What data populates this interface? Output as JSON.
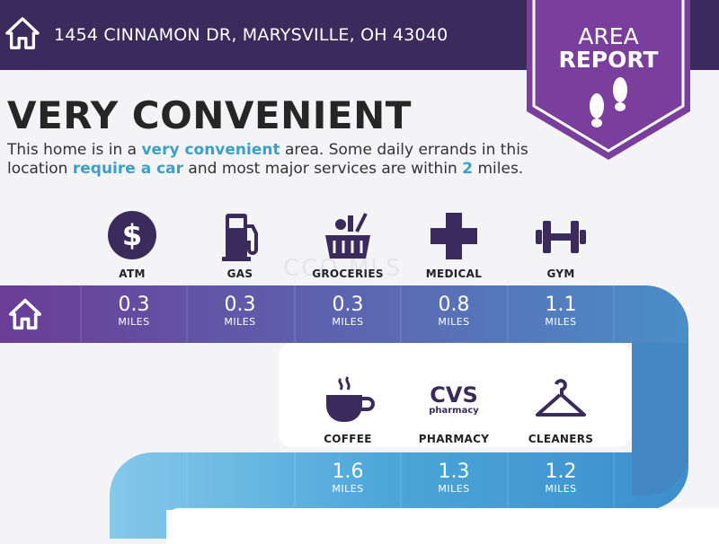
{
  "header": {
    "address": "1454 CINNAMON DR, MARYSVILLE, OH 43040",
    "bg_color": "#3b2a5c"
  },
  "badge": {
    "line1": "AREA",
    "line2": "REPORT",
    "color": "#7a3e9d",
    "icon": "footprints-icon"
  },
  "rating": {
    "title": "VERY CONVENIENT",
    "desc_parts": [
      "This home is in a ",
      "very convenient",
      " area. Some daily errands in this location ",
      "require a car",
      " and most major services are within ",
      "2",
      " miles."
    ],
    "highlight_color": "#3aa0c8"
  },
  "row1": [
    {
      "label": "ATM",
      "value": "0.3",
      "unit": "MILES",
      "icon": "dollar-icon"
    },
    {
      "label": "GAS",
      "value": "0.3",
      "unit": "MILES",
      "icon": "gas-pump-icon"
    },
    {
      "label": "GROCERIES",
      "value": "0.3",
      "unit": "MILES",
      "icon": "grocery-basket-icon"
    },
    {
      "label": "MEDICAL",
      "value": "0.8",
      "unit": "MILES",
      "icon": "medical-cross-icon"
    },
    {
      "label": "GYM",
      "value": "1.1",
      "unit": "MILES",
      "icon": "dumbbell-icon"
    }
  ],
  "row2": [
    {
      "label": "COFFEE",
      "value": "1.6",
      "unit": "MILES",
      "icon": "coffee-cup-icon"
    },
    {
      "label": "PHARMACY",
      "value": "1.3",
      "unit": "MILES",
      "icon": "cvs-logo-icon",
      "logo_text_1": "CVS",
      "logo_text_2": "pharmacy"
    },
    {
      "label": "CLEANERS",
      "value": "1.2",
      "unit": "MILES",
      "icon": "hanger-icon"
    }
  ],
  "watermark": "CCO MLS",
  "colors": {
    "purple_dark": "#6b3f97",
    "icon_dark": "#3b2a5c",
    "blue": "#4a8ec9",
    "light_blue": "#7ac3e6"
  }
}
